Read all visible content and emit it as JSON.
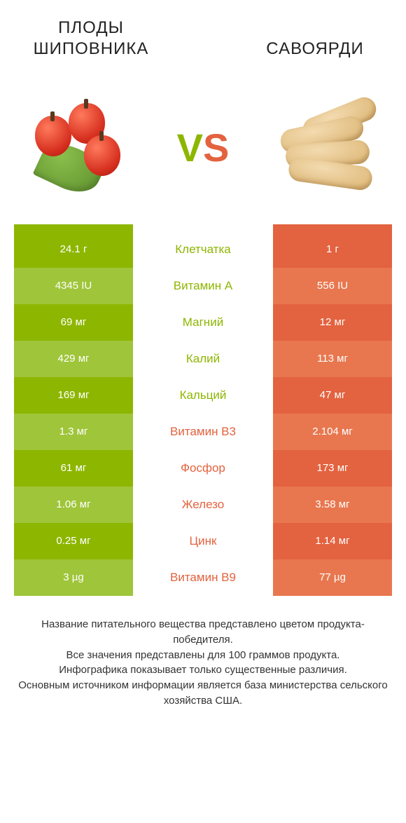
{
  "colors": {
    "green": "#8db600",
    "green_light": "#9fc53a",
    "orange": "#e3623f",
    "orange_light": "#e8774f"
  },
  "header": {
    "left_title": "ПЛОДЫ ШИПОВНИКА",
    "right_title": "САВОЯРДИ",
    "vs_v": "V",
    "vs_s": "S"
  },
  "rows": [
    {
      "left": "24.1 г",
      "label": "Клетчатка",
      "winner": "left",
      "right": "1 г"
    },
    {
      "left": "4345 IU",
      "label": "Витамин A",
      "winner": "left",
      "right": "556 IU"
    },
    {
      "left": "69 мг",
      "label": "Магний",
      "winner": "left",
      "right": "12 мг"
    },
    {
      "left": "429 мг",
      "label": "Калий",
      "winner": "left",
      "right": "113 мг"
    },
    {
      "left": "169 мг",
      "label": "Кальций",
      "winner": "left",
      "right": "47 мг"
    },
    {
      "left": "1.3 мг",
      "label": "Витамин B3",
      "winner": "right",
      "right": "2.104 мг"
    },
    {
      "left": "61 мг",
      "label": "Фосфор",
      "winner": "right",
      "right": "173 мг"
    },
    {
      "left": "1.06 мг",
      "label": "Железо",
      "winner": "right",
      "right": "3.58 мг"
    },
    {
      "left": "0.25 мг",
      "label": "Цинк",
      "winner": "right",
      "right": "1.14 мг"
    },
    {
      "left": "3 µg",
      "label": "Витамин B9",
      "winner": "right",
      "right": "77 µg"
    }
  ],
  "footnote": {
    "l1": "Название питательного вещества представлено цветом продукта-победителя.",
    "l2": "Все значения представлены для 100 граммов продукта.",
    "l3": "Инфографика показывает только существенные различия.",
    "l4": "Основным источником информации является база министерства сельского хозяйства США."
  }
}
